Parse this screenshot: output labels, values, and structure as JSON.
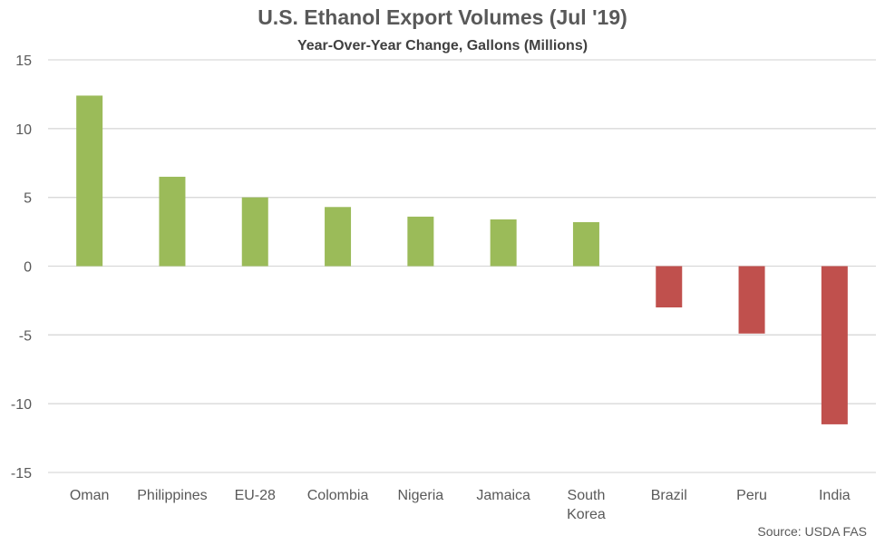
{
  "chart_data": {
    "type": "bar",
    "title": "U.S. Ethanol Export Volumes (Jul '19)",
    "subtitle": "Year-Over-Year Change, Gallons  (Millions)",
    "categories": [
      "Oman",
      "Philippines",
      "EU-28",
      "Colombia",
      "Nigeria",
      "Jamaica",
      "South Korea",
      "Brazil",
      "Peru",
      "India"
    ],
    "values": [
      12.4,
      6.5,
      5.0,
      4.3,
      3.6,
      3.4,
      3.2,
      -3.0,
      -4.9,
      -11.5
    ],
    "ylim": [
      -15,
      15
    ],
    "yticks": [
      15,
      10,
      5,
      0,
      -5,
      -10,
      -15
    ],
    "xlabel": "",
    "ylabel": "",
    "grid": true,
    "colors": {
      "positive": "#9BBB59",
      "negative": "#C0504D",
      "grid": "#D9D9D9"
    },
    "source": "Source: USDA FAS"
  }
}
